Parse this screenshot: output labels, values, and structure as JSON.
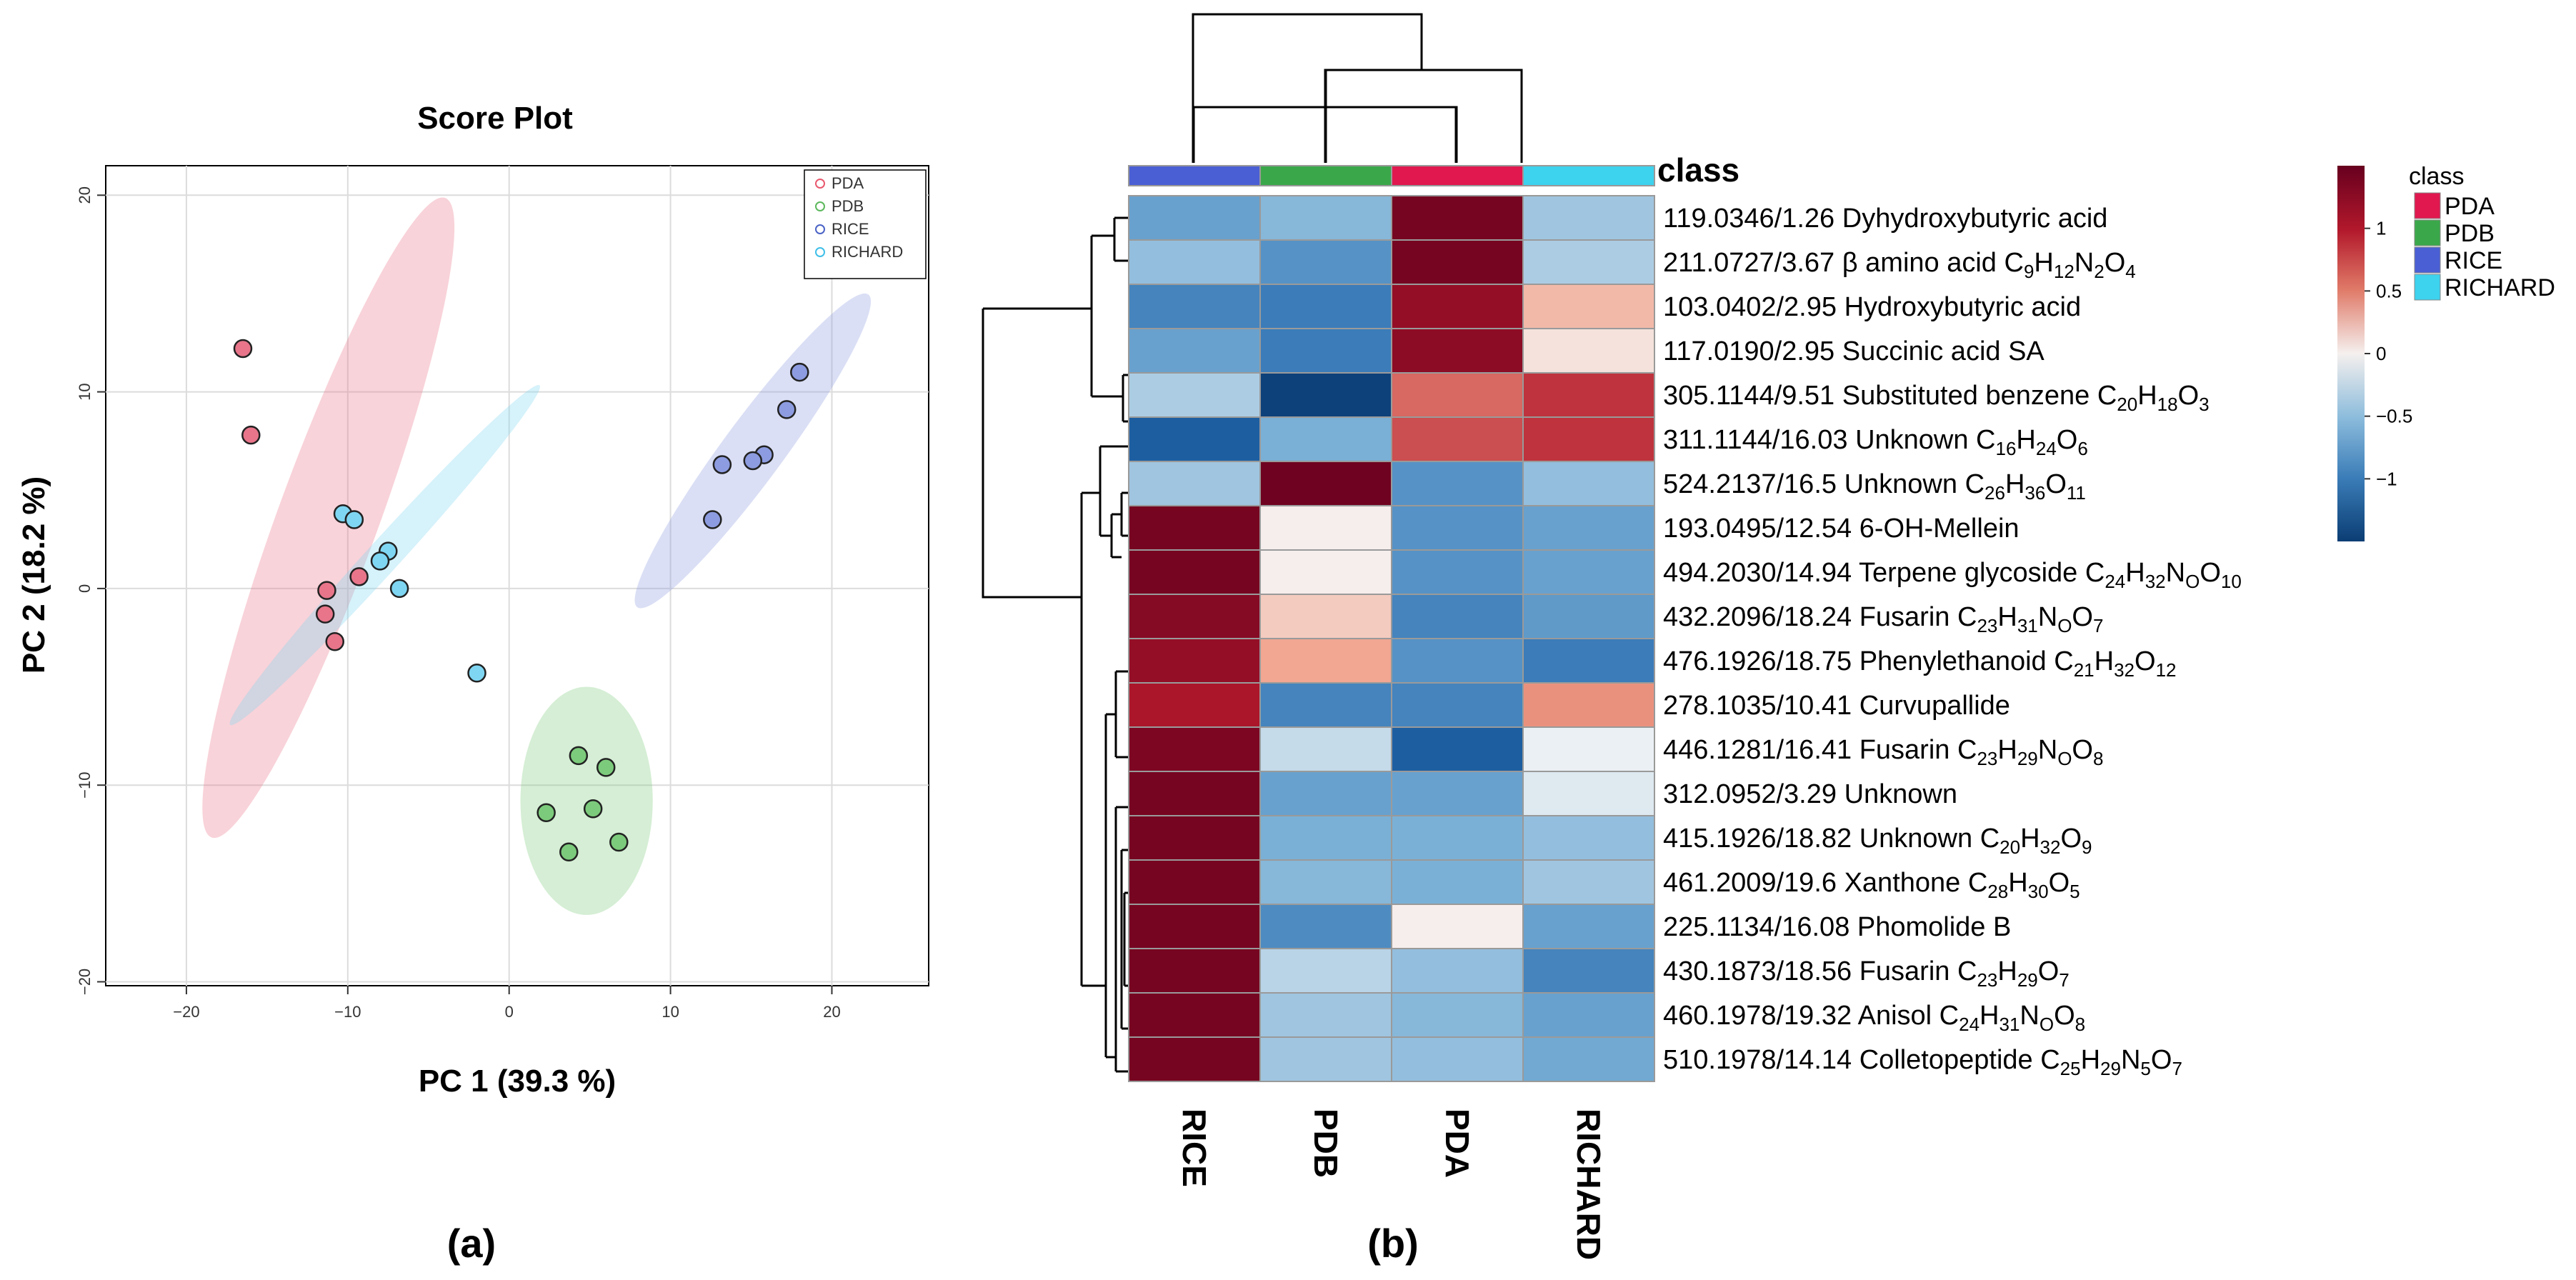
{
  "panels": {
    "a": {
      "label": "(a)"
    },
    "b": {
      "label": "(b)"
    }
  },
  "chart_data": [
    {
      "type": "scatter",
      "title": "Score Plot",
      "xlabel": "PC 1 (39.3 %)",
      "ylabel": "PC 2 (18.2 %)",
      "xlim": [
        -25,
        26
      ],
      "ylim": [
        -20.2,
        21.5
      ],
      "xticks": [
        -20,
        -10,
        0,
        10,
        20
      ],
      "yticks": [
        -20,
        -10,
        0,
        10,
        20
      ],
      "grid": true,
      "legend_position": "top-right",
      "series": [
        {
          "name": "PDA",
          "color": "#e8586d",
          "fill": "#e8758a",
          "points": [
            [
              -16.5,
              12.2
            ],
            [
              -16.0,
              7.8
            ],
            [
              -9.3,
              0.6
            ],
            [
              -11.3,
              -0.1
            ],
            [
              -11.4,
              -1.3
            ],
            [
              -10.8,
              -2.7
            ]
          ],
          "ellipse": {
            "cx": -11.2,
            "cy": 3.6,
            "rx": 17.8,
            "ry": 3.0,
            "angle": 66
          }
        },
        {
          "name": "PDB",
          "color": "#5cb85c",
          "fill": "#7ccb7c",
          "points": [
            [
              4.3,
              -8.5
            ],
            [
              6.0,
              -9.1
            ],
            [
              5.2,
              -11.2
            ],
            [
              2.3,
              -11.4
            ],
            [
              3.7,
              -13.4
            ],
            [
              6.8,
              -12.9
            ]
          ],
          "ellipse": {
            "cx": 4.8,
            "cy": -10.8,
            "rx": 4.1,
            "ry": 5.8,
            "angle": 0
          }
        },
        {
          "name": "RICE",
          "color": "#4a63c6",
          "fill": "#8d9ce0",
          "points": [
            [
              18.0,
              11.0
            ],
            [
              17.2,
              9.1
            ],
            [
              15.8,
              6.8
            ],
            [
              15.1,
              6.5
            ],
            [
              13.2,
              6.3
            ],
            [
              12.6,
              3.5
            ]
          ],
          "ellipse": {
            "cx": 15.1,
            "cy": 7.0,
            "rx": 10.7,
            "ry": 1.7,
            "angle": 48
          }
        },
        {
          "name": "RICHARD",
          "color": "#3fbfe8",
          "fill": "#7fd6f2",
          "points": [
            [
              -10.3,
              3.8
            ],
            [
              -9.6,
              3.5
            ],
            [
              -7.5,
              1.9
            ],
            [
              -8.0,
              1.4
            ],
            [
              -6.8,
              0.0
            ],
            [
              -2.0,
              -4.3
            ]
          ],
          "ellipse": {
            "cx": -7.7,
            "cy": 1.7,
            "rx": 12.9,
            "ry": 0.9,
            "angle": 42
          }
        }
      ]
    },
    {
      "type": "heatmap",
      "columns": [
        "RICE",
        "PDB",
        "PDA",
        "RICHARD"
      ],
      "column_class_colors": [
        "#4a5fd4",
        "#3aa84a",
        "#e0184f",
        "#3dd2ee"
      ],
      "class_label": "class",
      "rows": [
        {
          "id": "119.0346/1.26",
          "name": "Dyhydroxybutyric acid",
          "formula": [],
          "values": [
            -0.6,
            -0.45,
            1.4,
            -0.35
          ]
        },
        {
          "id": "211.0727/3.67",
          "name": "β amino acid",
          "formula": [
            [
              "C",
              "9"
            ],
            [
              "H",
              "12"
            ],
            [
              "N",
              "2"
            ],
            [
              "O",
              "4"
            ]
          ],
          "values": [
            -0.4,
            -0.7,
            1.4,
            -0.3
          ]
        },
        {
          "id": "103.0402/2.95",
          "name": "Hydroxybutyric acid",
          "formula": [],
          "values": [
            -0.8,
            -0.85,
            1.2,
            0.35
          ]
        },
        {
          "id": "117.0190/2.95",
          "name": "Succinic acid SA",
          "formula": [],
          "values": [
            -0.6,
            -0.85,
            1.25,
            0.12
          ]
        },
        {
          "id": "305.1144/9.51",
          "name": "Substituted benzene",
          "formula": [
            [
              "C",
              "20"
            ],
            [
              "H",
              "18"
            ],
            [
              "O",
              "3"
            ]
          ],
          "values": [
            -0.3,
            -1.45,
            0.7,
            0.9
          ]
        },
        {
          "id": "311.1144/16.03",
          "name": "Unknown",
          "formula": [
            [
              "C",
              "16"
            ],
            [
              "H",
              "24"
            ],
            [
              "O",
              "6"
            ]
          ],
          "values": [
            -1.1,
            -0.5,
            0.8,
            0.9
          ]
        },
        {
          "id": "524.2137/16.5",
          "name": "Unknown",
          "formula": [
            [
              "C",
              "26"
            ],
            [
              "H",
              "36"
            ],
            [
              "O",
              "11"
            ]
          ],
          "values": [
            -0.35,
            1.45,
            -0.7,
            -0.4
          ]
        },
        {
          "id": "193.0495/12.54",
          "name": "6-OH-Mellein",
          "formula": [],
          "values": [
            1.4,
            0.05,
            -0.7,
            -0.6
          ]
        },
        {
          "id": "494.2030/14.94",
          "name": "Terpene glycoside",
          "formula": [
            [
              "C",
              "24"
            ],
            [
              "H",
              "32"
            ],
            [
              "N",
              "O"
            ],
            [
              "O",
              "10"
            ]
          ],
          "values": [
            1.4,
            0.05,
            -0.7,
            -0.6
          ]
        },
        {
          "id": "432.2096/18.24",
          "name": "Fusarin",
          "formula": [
            [
              "C",
              "23"
            ],
            [
              "H",
              "31"
            ],
            [
              "N",
              "O"
            ],
            [
              "O",
              "7"
            ]
          ],
          "values": [
            1.3,
            0.25,
            -0.8,
            -0.65
          ]
        },
        {
          "id": "476.1926/18.75",
          "name": "Phenylethanoid",
          "formula": [
            [
              "C",
              "21"
            ],
            [
              "H",
              "32"
            ],
            [
              "O",
              "12"
            ]
          ],
          "values": [
            1.2,
            0.45,
            -0.7,
            -0.85
          ]
        },
        {
          "id": "278.1035/10.41",
          "name": "Curvupallide",
          "formula": [],
          "values": [
            1.05,
            -0.8,
            -0.8,
            0.55
          ]
        },
        {
          "id": "446.1281/16.41",
          "name": "Fusarin",
          "formula": [
            [
              "C",
              "23"
            ],
            [
              "H",
              "29"
            ],
            [
              "N",
              "O"
            ],
            [
              "O",
              "8"
            ]
          ],
          "values": [
            1.35,
            -0.2,
            -1.1,
            -0.05
          ]
        },
        {
          "id": "312.0952/3.29",
          "name": "Unknown",
          "formula": [],
          "values": [
            1.4,
            -0.6,
            -0.6,
            -0.1
          ]
        },
        {
          "id": "415.1926/18.82",
          "name": "Unknown ",
          "formula": [
            [
              "C",
              "20"
            ],
            [
              "H",
              "32"
            ],
            [
              "O",
              "9"
            ]
          ],
          "values": [
            1.4,
            -0.5,
            -0.5,
            -0.4
          ]
        },
        {
          "id": "461.2009/19.6",
          "name": "Xanthone",
          "formula": [
            [
              "C",
              "28"
            ],
            [
              "H",
              "30"
            ],
            [
              "O",
              "5"
            ]
          ],
          "values": [
            1.4,
            -0.45,
            -0.5,
            -0.35
          ]
        },
        {
          "id": "225.1134/16.08",
          "name": "Phomolide B",
          "formula": [],
          "values": [
            1.4,
            -0.75,
            0.05,
            -0.6
          ]
        },
        {
          "id": "430.1873/18.56",
          "name": "Fusarin",
          "formula": [
            [
              "C",
              "23"
            ],
            [
              "H",
              "29"
            ],
            [
              "O",
              "7"
            ]
          ],
          "values": [
            1.4,
            -0.25,
            -0.4,
            -0.8
          ]
        },
        {
          "id": "460.1978/19.32",
          "name": "Anisol",
          "formula": [
            [
              "C",
              "24"
            ],
            [
              "H",
              "31"
            ],
            [
              "N",
              "O"
            ],
            [
              "O",
              "8"
            ]
          ],
          "values": [
            1.4,
            -0.35,
            -0.45,
            -0.6
          ]
        },
        {
          "id": "510.1978/14.14",
          "name": "Colletopeptide",
          "formula": [
            [
              "C",
              "25"
            ],
            [
              "H",
              "29"
            ],
            [
              "N",
              "5"
            ],
            [
              "O",
              "7"
            ]
          ],
          "values": [
            1.4,
            -0.35,
            -0.4,
            -0.55
          ]
        }
      ],
      "colorbar": {
        "min": -1.5,
        "max": 1.5,
        "ticks": [
          1,
          0.5,
          0,
          -0.5,
          -1
        ],
        "tick_labels": [
          "1",
          "0.5",
          "0",
          "−0.5",
          "−1"
        ]
      },
      "class_legend": {
        "title": "class",
        "position": "top-right",
        "items": [
          {
            "name": "PDA",
            "color": "#e0184f"
          },
          {
            "name": "PDB",
            "color": "#3aa84a"
          },
          {
            "name": "RICE",
            "color": "#4a5fd4"
          },
          {
            "name": "RICHARD",
            "color": "#3dd2ee"
          }
        ]
      }
    }
  ]
}
